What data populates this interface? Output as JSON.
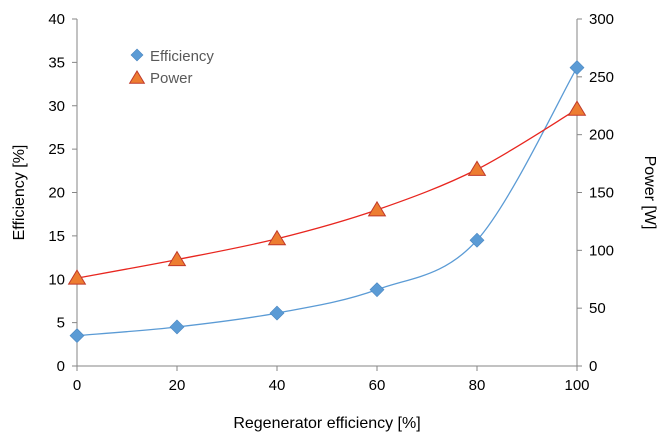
{
  "chart_data": {
    "type": "scatter",
    "xlabel": "Regenerator efficiency [%]",
    "ylabel": "Efficiency [%]",
    "y2label": "Power [W]",
    "xlim": [
      0,
      100
    ],
    "ylim": [
      0,
      40
    ],
    "y2lim": [
      0,
      300
    ],
    "x_ticks": [
      0,
      20,
      40,
      60,
      80,
      100
    ],
    "y_ticks": [
      0,
      5,
      10,
      15,
      20,
      25,
      30,
      35,
      40
    ],
    "y2_ticks": [
      0,
      50,
      100,
      150,
      200,
      250,
      300
    ],
    "grid": false,
    "legend_position": "top-left",
    "series": [
      {
        "name": "Efficiency",
        "axis": "left",
        "marker": "diamond",
        "color": "#5B9BD5",
        "line_color": "#5B9BD5",
        "x": [
          0,
          20,
          40,
          60,
          80,
          100
        ],
        "values": [
          3.5,
          4.5,
          6.1,
          8.8,
          14.5,
          34.4
        ]
      },
      {
        "name": "Power",
        "axis": "right",
        "marker": "triangle",
        "color": "#ED7D31",
        "line_color": "#E8261F",
        "x": [
          0,
          20,
          40,
          60,
          80,
          100
        ],
        "values": [
          76,
          92,
          110,
          135,
          170,
          222
        ]
      }
    ]
  }
}
